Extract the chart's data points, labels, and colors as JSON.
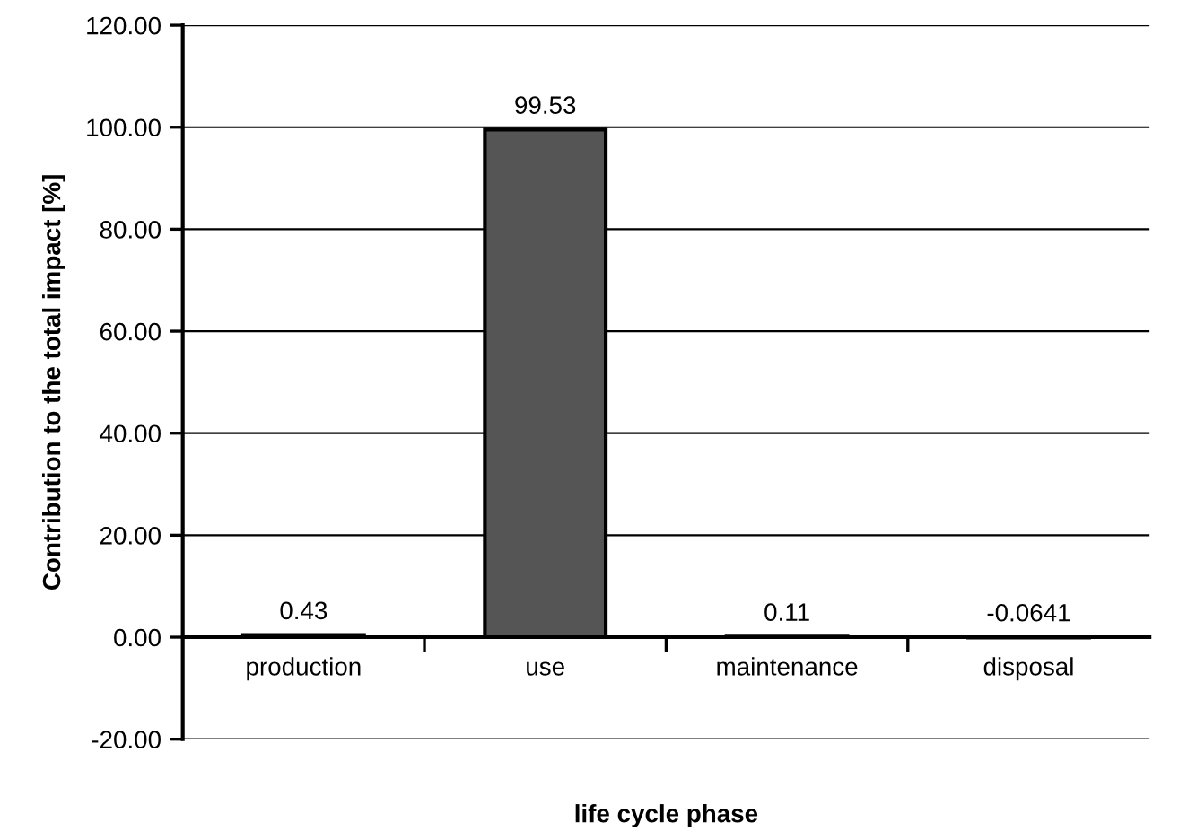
{
  "chart_data": {
    "type": "bar",
    "xlabel": "life cycle phase",
    "ylabel": "Contribution to the total impact [%]",
    "categories": [
      "production",
      "use",
      "maintenance",
      "disposal"
    ],
    "values": [
      0.43,
      99.53,
      0.11,
      -0.0641
    ],
    "color": "#555555",
    "data_labels": true,
    "ylim": [
      -20,
      120
    ],
    "yticks": [
      {
        "value": -20,
        "label": "-20.00"
      },
      {
        "value": 0,
        "label": "0.00"
      },
      {
        "value": 20,
        "label": "20.00"
      },
      {
        "value": 40,
        "label": "40.00"
      },
      {
        "value": 60,
        "label": "60.00"
      },
      {
        "value": 80,
        "label": "80.00"
      },
      {
        "value": 100,
        "label": "100.00"
      },
      {
        "value": 120,
        "label": "120.00"
      }
    ],
    "grid": "y",
    "legend": false
  }
}
